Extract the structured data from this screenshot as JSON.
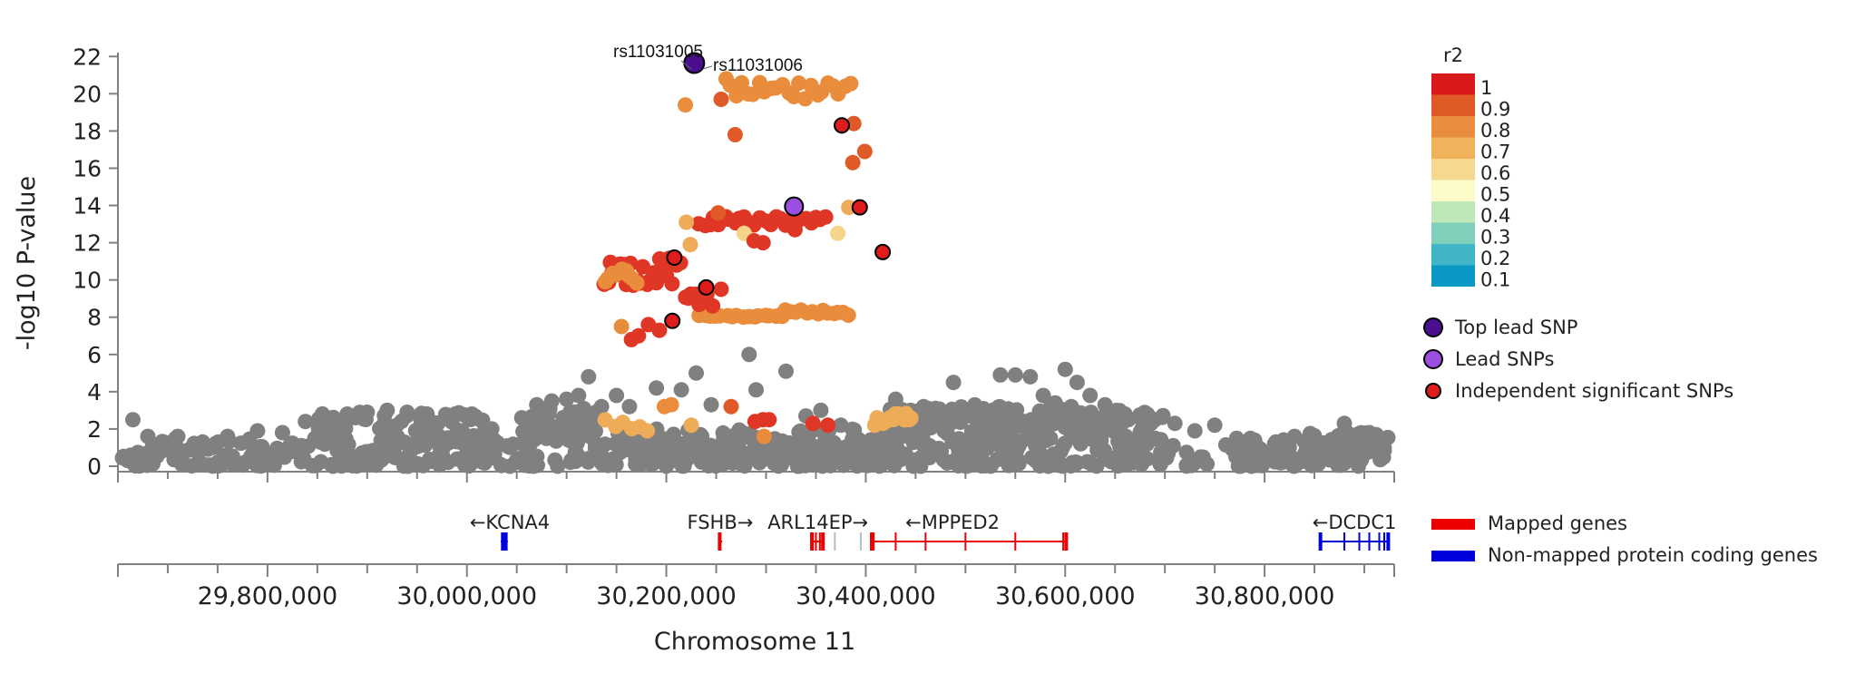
{
  "chart_data": {
    "type": "scatter",
    "ylabel": "-log10 P-value",
    "xlabel": "Chromosome 11",
    "y_ticks": [
      "0",
      "2",
      "4",
      "6",
      "8",
      "10",
      "12",
      "14",
      "16",
      "18",
      "20",
      "22"
    ],
    "x_ticks": [
      "29,800,000",
      "30,000,000",
      "30,200,000",
      "30,400,000",
      "30,600,000",
      "30,800,000"
    ],
    "x_tick_values": [
      29800000,
      30000000,
      30200000,
      30400000,
      30600000,
      30800000
    ],
    "xlim": [
      29650000,
      30930000
    ],
    "ylim": [
      0,
      22.5
    ],
    "colors": {
      "gray": "#808080",
      "top_lead": "#4a0e8f",
      "lead": "#9b4fe0",
      "mapped_gene": "#ee0000",
      "nonmapped_gene": "#0000dd"
    },
    "annotations": [
      {
        "text": "rs11031005",
        "x": 30228000,
        "y": 21.65
      },
      {
        "text": "rs11031006",
        "x": 30228000,
        "y": 21.65
      }
    ],
    "colored_clusters": [
      {
        "x0": 30233000,
        "x1": 30315000,
        "y0": 8.0,
        "y1": 8.1,
        "n": 16,
        "color": "#e98c3b"
      },
      {
        "x0": 30315000,
        "x1": 30383000,
        "y0": 8.1,
        "y1": 8.4,
        "n": 14,
        "color": "#e98c3b"
      },
      {
        "x0": 30138000,
        "x1": 30213000,
        "y0": 9.7,
        "y1": 11.2,
        "n": 26,
        "color": "#df3625"
      },
      {
        "x0": 30138000,
        "x1": 30170000,
        "y0": 9.8,
        "y1": 10.6,
        "n": 10,
        "color": "#e98c3b"
      },
      {
        "x0": 30218000,
        "x1": 30245000,
        "y0": 8.6,
        "y1": 9.4,
        "n": 8,
        "color": "#df3625"
      },
      {
        "x0": 30233000,
        "x1": 30360000,
        "y0": 12.9,
        "y1": 13.4,
        "n": 26,
        "color": "#df3625"
      },
      {
        "x0": 30265000,
        "x1": 30385000,
        "y0": 19.6,
        "y1": 20.6,
        "n": 22,
        "color": "#e98c3b"
      },
      {
        "x0": 30410000,
        "x1": 30445000,
        "y0": 2.3,
        "y1": 2.9,
        "n": 16,
        "color": "#eeab58"
      },
      {
        "x0": 30140000,
        "x1": 30180000,
        "y0": 1.8,
        "y1": 2.6,
        "n": 6,
        "color": "#eeab58"
      }
    ],
    "colored_points": [
      {
        "x": 30260000,
        "y": 20.8,
        "color": "#e98c3b"
      },
      {
        "x": 30255000,
        "y": 19.7,
        "color": "#e05a28"
      },
      {
        "x": 30219000,
        "y": 19.4,
        "color": "#e98c3b"
      },
      {
        "x": 30269000,
        "y": 17.8,
        "color": "#e05a28"
      },
      {
        "x": 30388000,
        "y": 18.4,
        "color": "#e05a28"
      },
      {
        "x": 30399000,
        "y": 16.9,
        "color": "#e05a28"
      },
      {
        "x": 30387000,
        "y": 16.3,
        "color": "#e05a28"
      },
      {
        "x": 30383000,
        "y": 13.9,
        "color": "#eeab58"
      },
      {
        "x": 30220000,
        "y": 13.1,
        "color": "#eeab58"
      },
      {
        "x": 30252000,
        "y": 13.6,
        "color": "#e05a28"
      },
      {
        "x": 30278000,
        "y": 12.5,
        "color": "#f5d58a"
      },
      {
        "x": 30288000,
        "y": 12.1,
        "color": "#df3625"
      },
      {
        "x": 30297000,
        "y": 12.0,
        "color": "#df3625"
      },
      {
        "x": 30329000,
        "y": 12.7,
        "color": "#df3625"
      },
      {
        "x": 30372000,
        "y": 12.5,
        "color": "#f5d58a"
      },
      {
        "x": 30224000,
        "y": 11.9,
        "color": "#eeab58"
      },
      {
        "x": 30200000,
        "y": 10.9,
        "color": "#df3625"
      },
      {
        "x": 30155000,
        "y": 7.5,
        "color": "#e98c3b"
      },
      {
        "x": 30165000,
        "y": 6.8,
        "color": "#df3625"
      },
      {
        "x": 30172000,
        "y": 7.0,
        "color": "#df3625"
      },
      {
        "x": 30182000,
        "y": 7.6,
        "color": "#df3625"
      },
      {
        "x": 30193000,
        "y": 7.3,
        "color": "#df3625"
      },
      {
        "x": 30255000,
        "y": 9.5,
        "color": "#df3625"
      },
      {
        "x": 30198000,
        "y": 3.2,
        "color": "#e98c3b"
      },
      {
        "x": 30205000,
        "y": 3.3,
        "color": "#e98c3b"
      },
      {
        "x": 30265000,
        "y": 3.2,
        "color": "#e05a28"
      },
      {
        "x": 30225000,
        "y": 2.2,
        "color": "#eeab58"
      },
      {
        "x": 30289000,
        "y": 2.4,
        "color": "#df3625"
      },
      {
        "x": 30297000,
        "y": 2.5,
        "color": "#df3625"
      },
      {
        "x": 30303000,
        "y": 2.5,
        "color": "#df3625"
      },
      {
        "x": 30347000,
        "y": 2.3,
        "color": "#df3625"
      },
      {
        "x": 30362000,
        "y": 2.2,
        "color": "#df3625"
      },
      {
        "x": 30298000,
        "y": 1.6,
        "color": "#e98c3b"
      },
      {
        "x": 30409000,
        "y": 2.2,
        "color": "#eeab58"
      }
    ],
    "top_lead_snp": {
      "x": 30228000,
      "y": 21.65
    },
    "lead_snps": [
      {
        "x": 30328000,
        "y": 13.95
      }
    ],
    "independent_snps": [
      {
        "x": 30376000,
        "y": 18.3
      },
      {
        "x": 30394000,
        "y": 13.9
      },
      {
        "x": 30417000,
        "y": 11.5
      },
      {
        "x": 30208000,
        "y": 11.2
      },
      {
        "x": 30240000,
        "y": 9.6
      },
      {
        "x": 30206000,
        "y": 7.8
      }
    ],
    "gray_points": [
      {
        "x": 29665000,
        "y": 2.5
      },
      {
        "x": 29680000,
        "y": 1.6
      },
      {
        "x": 29710000,
        "y": 1.6
      },
      {
        "x": 29735000,
        "y": 1.3
      },
      {
        "x": 29760000,
        "y": 1.6
      },
      {
        "x": 29790000,
        "y": 1.9
      },
      {
        "x": 29815000,
        "y": 1.8
      },
      {
        "x": 29838000,
        "y": 2.4
      },
      {
        "x": 29860000,
        "y": 2.6
      },
      {
        "x": 29880000,
        "y": 2.8
      },
      {
        "x": 29900000,
        "y": 2.9
      },
      {
        "x": 29920000,
        "y": 3.0
      },
      {
        "x": 29940000,
        "y": 2.9
      },
      {
        "x": 29960000,
        "y": 2.8
      },
      {
        "x": 29985000,
        "y": 2.5
      },
      {
        "x": 30005000,
        "y": 2.8
      },
      {
        "x": 30025000,
        "y": 2.0
      },
      {
        "x": 30055000,
        "y": 2.6
      },
      {
        "x": 30070000,
        "y": 3.3
      },
      {
        "x": 30085000,
        "y": 3.5
      },
      {
        "x": 30100000,
        "y": 3.6
      },
      {
        "x": 30112000,
        "y": 3.8
      },
      {
        "x": 30122000,
        "y": 4.8
      },
      {
        "x": 30135000,
        "y": 3.2
      },
      {
        "x": 30150000,
        "y": 3.8
      },
      {
        "x": 30163000,
        "y": 3.2
      },
      {
        "x": 30190000,
        "y": 4.2
      },
      {
        "x": 30215000,
        "y": 4.1
      },
      {
        "x": 30230000,
        "y": 5.0
      },
      {
        "x": 30245000,
        "y": 3.3
      },
      {
        "x": 30283000,
        "y": 6.0
      },
      {
        "x": 30290000,
        "y": 4.1
      },
      {
        "x": 30320000,
        "y": 5.1
      },
      {
        "x": 30340000,
        "y": 2.7
      },
      {
        "x": 30355000,
        "y": 3.0
      },
      {
        "x": 30375000,
        "y": 2.2
      },
      {
        "x": 30430000,
        "y": 3.6
      },
      {
        "x": 30445000,
        "y": 3.0
      },
      {
        "x": 30458000,
        "y": 3.2
      },
      {
        "x": 30470000,
        "y": 3.1
      },
      {
        "x": 30488000,
        "y": 4.5
      },
      {
        "x": 30500000,
        "y": 2.8
      },
      {
        "x": 30520000,
        "y": 2.7
      },
      {
        "x": 30535000,
        "y": 4.9
      },
      {
        "x": 30550000,
        "y": 4.9
      },
      {
        "x": 30565000,
        "y": 4.8
      },
      {
        "x": 30578000,
        "y": 3.8
      },
      {
        "x": 30590000,
        "y": 3.4
      },
      {
        "x": 30600000,
        "y": 5.2
      },
      {
        "x": 30612000,
        "y": 4.5
      },
      {
        "x": 30625000,
        "y": 3.8
      },
      {
        "x": 30640000,
        "y": 3.3
      },
      {
        "x": 30660000,
        "y": 2.8
      },
      {
        "x": 30675000,
        "y": 2.6
      },
      {
        "x": 30690000,
        "y": 2.5
      },
      {
        "x": 30710000,
        "y": 2.3
      },
      {
        "x": 30730000,
        "y": 1.9
      },
      {
        "x": 30750000,
        "y": 2.2
      },
      {
        "x": 30772000,
        "y": 1.5
      },
      {
        "x": 30790000,
        "y": 1.4
      },
      {
        "x": 30810000,
        "y": 1.2
      },
      {
        "x": 30830000,
        "y": 1.6
      },
      {
        "x": 30850000,
        "y": 1.5
      },
      {
        "x": 30865000,
        "y": 1.3
      },
      {
        "x": 30880000,
        "y": 2.3
      },
      {
        "x": 30895000,
        "y": 1.4
      },
      {
        "x": 30905000,
        "y": 1.8
      },
      {
        "x": 30915000,
        "y": 0.9
      }
    ],
    "gray_band": {
      "x0": 29652000,
      "x1": 30925000,
      "y0": 0.0,
      "y1": 1.5,
      "n": 600
    },
    "gray_clusters": [
      {
        "x0": 29845000,
        "x1": 30020000,
        "y0": 1.2,
        "y1": 2.9,
        "n": 90
      },
      {
        "x0": 30055000,
        "x1": 30130000,
        "y0": 1.2,
        "y1": 3.3,
        "n": 60
      },
      {
        "x0": 30140000,
        "x1": 30440000,
        "y0": 0.4,
        "y1": 2.0,
        "n": 120
      },
      {
        "x0": 30420000,
        "x1": 30620000,
        "y0": 1.4,
        "y1": 3.3,
        "n": 120
      },
      {
        "x0": 30600000,
        "x1": 30700000,
        "y0": 1.3,
        "y1": 3.0,
        "n": 60
      },
      {
        "x0": 30840000,
        "x1": 30925000,
        "y0": 0.6,
        "y1": 1.8,
        "n": 40
      }
    ],
    "genes": [
      {
        "name": "←KCNA4",
        "start": 30034000,
        "end": 30041000,
        "mapped": false,
        "label_x": 30043000,
        "ticks": [
          30036000,
          30039000
        ]
      },
      {
        "name": "FSHB→",
        "start": 30252000,
        "end": 30256000,
        "mapped": true,
        "label_x": 30254000,
        "ticks": [
          30253500
        ]
      },
      {
        "name": "ARL14EP→",
        "start": 30345000,
        "end": 30358000,
        "mapped": true,
        "label_x": 30352000,
        "ticks": [
          30346000,
          30350000,
          30354000,
          30357000
        ]
      },
      {
        "name": "←MPPED2",
        "start": 30405000,
        "end": 30602000,
        "mapped": true,
        "label_x": 30487000,
        "ticks": [
          30406000,
          30408000,
          30430000,
          30460000,
          30500000,
          30550000,
          30598000,
          30601000
        ]
      },
      {
        "name": "←DCDC1",
        "start": 30855000,
        "end": 30925000,
        "mapped": false,
        "label_x": 30890000,
        "ticks": [
          30856000,
          30880000,
          30895000,
          30905000,
          30915000,
          30920000,
          30924000
        ]
      }
    ],
    "pseudo_gene_ticks": [
      30369000,
      30395000
    ],
    "r2_legend": {
      "title": "r2",
      "levels": [
        {
          "label": "1",
          "color": "#d7191c"
        },
        {
          "label": "0.9",
          "color": "#e05a28"
        },
        {
          "label": "0.8",
          "color": "#e98c3b"
        },
        {
          "label": "0.7",
          "color": "#f0b35c"
        },
        {
          "label": "0.6",
          "color": "#f6d88f"
        },
        {
          "label": "0.5",
          "color": "#fdfcc8"
        },
        {
          "label": "0.4",
          "color": "#bfe8b6"
        },
        {
          "label": "0.3",
          "color": "#80d0bc"
        },
        {
          "label": "0.2",
          "color": "#3fb5c6"
        },
        {
          "label": "0.1",
          "color": "#0a98c4"
        }
      ]
    },
    "legend": {
      "top_lead": "Top lead SNP",
      "lead": "Lead SNPs",
      "independent": "Independent significant SNPs",
      "mapped": "Mapped genes",
      "nonmapped": "Non-mapped protein coding genes"
    }
  }
}
